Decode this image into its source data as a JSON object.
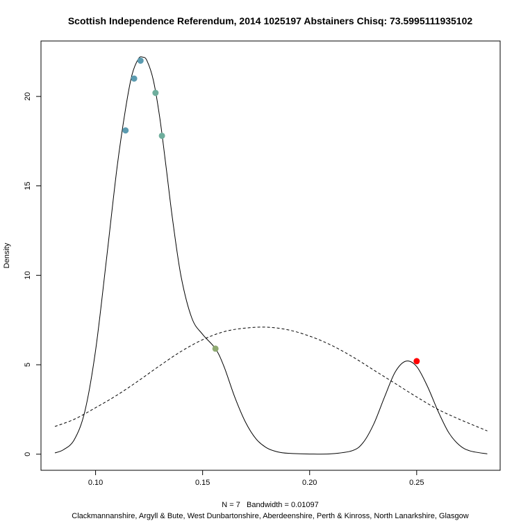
{
  "chart_data": {
    "type": "line",
    "title": "Scottish Independence Referendum, 2014 1025197 Abstainers Chisq: 73.5995111935102",
    "ylabel": "Density",
    "xlabel": "N = 7   Bandwidth = 0.01097",
    "subtitle": "Clackmannanshire, Argyll & Bute, West Dunbartonshire, Aberdeenshire, Perth & Kinross, North Lanarkshire, Glasgow",
    "xlim": [
      0.0745,
      0.289
    ],
    "ylim": [
      -0.9,
      23.1
    ],
    "x_ticks": [
      {
        "value": 0.1,
        "label": "0.10"
      },
      {
        "value": 0.15,
        "label": "0.15"
      },
      {
        "value": 0.2,
        "label": "0.20"
      },
      {
        "value": 0.25,
        "label": "0.25"
      }
    ],
    "y_ticks": [
      {
        "value": 0,
        "label": "0"
      },
      {
        "value": 5,
        "label": "5"
      },
      {
        "value": 10,
        "label": "10"
      },
      {
        "value": 15,
        "label": "15"
      },
      {
        "value": 20,
        "label": "20"
      }
    ],
    "grid": false,
    "legend": "none",
    "series": [
      {
        "style": "solid",
        "x": [
          0.081,
          0.085,
          0.09,
          0.095,
          0.1,
          0.105,
          0.11,
          0.114,
          0.117,
          0.12,
          0.122,
          0.124,
          0.127,
          0.13,
          0.133,
          0.136,
          0.14,
          0.145,
          0.15,
          0.156,
          0.16,
          0.165,
          0.17,
          0.175,
          0.18,
          0.185,
          0.19,
          0.2,
          0.21,
          0.22,
          0.225,
          0.23,
          0.235,
          0.24,
          0.245,
          0.25,
          0.255,
          0.26,
          0.265,
          0.27,
          0.275,
          0.283
        ],
        "y": [
          0.07,
          0.25,
          0.8,
          2.4,
          5.8,
          10.8,
          16.0,
          19.3,
          21.2,
          22.1,
          22.2,
          22.0,
          20.9,
          18.8,
          16.0,
          13.1,
          9.9,
          7.6,
          6.7,
          5.9,
          4.9,
          3.2,
          1.8,
          0.85,
          0.35,
          0.13,
          0.05,
          0.01,
          0.02,
          0.2,
          0.65,
          1.7,
          3.2,
          4.6,
          5.2,
          4.9,
          3.8,
          2.4,
          1.2,
          0.5,
          0.18,
          0.02
        ]
      },
      {
        "style": "dashed",
        "x": [
          0.081,
          0.09,
          0.1,
          0.11,
          0.12,
          0.13,
          0.14,
          0.15,
          0.16,
          0.17,
          0.18,
          0.19,
          0.2,
          0.21,
          0.22,
          0.23,
          0.24,
          0.25,
          0.26,
          0.27,
          0.283
        ],
        "y": [
          1.55,
          1.95,
          2.6,
          3.3,
          4.1,
          4.95,
          5.75,
          6.4,
          6.85,
          7.05,
          7.1,
          6.95,
          6.6,
          6.1,
          5.45,
          4.7,
          3.95,
          3.2,
          2.5,
          1.95,
          1.3
        ]
      }
    ],
    "points": [
      {
        "x": 0.114,
        "y": 18.1,
        "color": "#5b9bb0"
      },
      {
        "x": 0.118,
        "y": 21.0,
        "color": "#5b9bb0"
      },
      {
        "x": 0.121,
        "y": 22.0,
        "color": "#5b9bb0"
      },
      {
        "x": 0.128,
        "y": 20.2,
        "color": "#6fae9d"
      },
      {
        "x": 0.131,
        "y": 17.8,
        "color": "#6fae9d"
      },
      {
        "x": 0.156,
        "y": 5.9,
        "color": "#8faa72"
      },
      {
        "x": 0.25,
        "y": 5.2,
        "color": "#ff0000"
      }
    ]
  }
}
